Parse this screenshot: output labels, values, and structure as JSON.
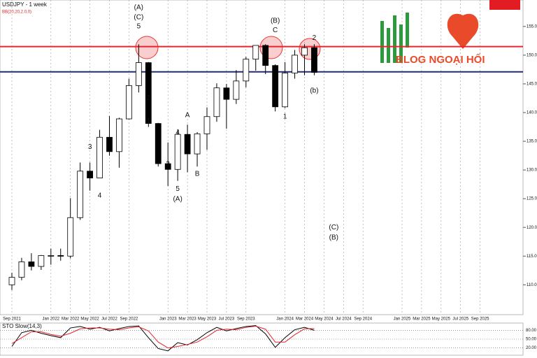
{
  "branding": {
    "logo_text": "BLOG NGOẠI HỐI"
  },
  "chart_data": [
    {
      "type": "candlestick",
      "title": "USDJPY - 1 week",
      "subtitle": "BB(20,20,2.0,0)",
      "categories": [
        "Sep 2021",
        null,
        null,
        null,
        "Jan 2022",
        null,
        "Mar 2022",
        null,
        "May 2022",
        null,
        "Jul 2022",
        null,
        "Sep 2022",
        null,
        null,
        null,
        "Jan 2023",
        null,
        "Mar 2023",
        null,
        "May 2023",
        null,
        "Jul 2023",
        null,
        "Sep 2023",
        null,
        null,
        null,
        "Jan 2024",
        null,
        "Mar 2024",
        null,
        "May 2024",
        null,
        "Jul 2024",
        null,
        "Sep 2024",
        null,
        null,
        null,
        "Jan 2025",
        null,
        "Mar 2025",
        null,
        "May 2025",
        null,
        "Jul 2025",
        null,
        "Sep 2025",
        null
      ],
      "open": [
        110.0,
        111.3,
        114.0,
        113.2,
        115.1,
        115.1,
        115.0,
        121.7,
        129.8,
        128.6,
        135.7,
        133.2,
        138.9,
        144.7,
        148.7,
        138.1,
        131.1,
        130.1,
        136.2,
        132.8,
        136.3,
        139.3,
        144.3,
        142.3,
        145.5,
        149.3,
        151.7,
        148.2,
        141.0,
        146.9,
        150.0,
        151.3,
        null,
        null,
        null,
        null,
        null,
        null,
        null,
        null,
        null,
        null,
        null,
        null,
        null,
        null,
        null,
        null,
        null,
        null
      ],
      "high": [
        112.1,
        114.7,
        115.5,
        115.2,
        116.3,
        116.3,
        125.1,
        131.3,
        131.3,
        137.0,
        139.4,
        139.1,
        145.9,
        151.9,
        148.8,
        138.2,
        134.8,
        137.1,
        137.9,
        136.6,
        140.9,
        145.1,
        145.0,
        147.4,
        149.7,
        151.7,
        151.9,
        148.4,
        148.8,
        150.9,
        151.9,
        151.9,
        null,
        null,
        null,
        null,
        null,
        null,
        null,
        null,
        null,
        null,
        null,
        null,
        null,
        null,
        null,
        null,
        null,
        null
      ],
      "low": [
        109.1,
        110.8,
        112.5,
        112.6,
        113.5,
        114.2,
        114.6,
        121.3,
        126.4,
        128.6,
        132.5,
        130.4,
        138.8,
        143.5,
        137.5,
        130.6,
        127.2,
        128.1,
        129.6,
        130.6,
        133.5,
        138.4,
        137.2,
        141.5,
        144.4,
        147.3,
        146.7,
        140.2,
        140.8,
        145.9,
        146.5,
        146.5,
        null,
        null,
        null,
        null,
        null,
        null,
        null,
        null,
        null,
        null,
        null,
        null,
        null,
        null,
        null,
        null,
        null,
        null
      ],
      "close": [
        111.3,
        114.0,
        113.2,
        115.1,
        115.1,
        115.0,
        121.7,
        129.8,
        128.6,
        135.7,
        133.2,
        138.9,
        144.7,
        148.7,
        138.1,
        131.1,
        130.1,
        136.2,
        132.8,
        136.3,
        139.3,
        144.3,
        142.3,
        145.5,
        149.3,
        151.7,
        148.2,
        141.0,
        146.9,
        150.0,
        151.3,
        147.0,
        null,
        null,
        null,
        null,
        null,
        null,
        null,
        null,
        null,
        null,
        null,
        null,
        null,
        null,
        null,
        null,
        null,
        null
      ],
      "up_color": "#ffffff",
      "down_color": "#000000",
      "grid": "x",
      "ylim": [
        104.8,
        159.0
      ],
      "yticks": [
        {
          "value": 110,
          "label": "110.000"
        },
        {
          "value": 115,
          "label": "115.000"
        },
        {
          "value": 120,
          "label": "120.000"
        },
        {
          "value": 125,
          "label": "125.000"
        },
        {
          "value": 130,
          "label": "130.000"
        },
        {
          "value": 135,
          "label": "135.000"
        },
        {
          "value": 140,
          "label": "140.000"
        },
        {
          "value": 145,
          "label": "145.000"
        },
        {
          "value": 150,
          "label": "150.000"
        },
        {
          "value": 155,
          "label": "155.000"
        }
      ],
      "levels": [
        {
          "value": 151.5,
          "color": "#e6262e"
        },
        {
          "value": 147.1,
          "color": "#1f2d6b"
        }
      ],
      "annotations": [
        {
          "text": "(A)",
          "at": 13,
          "y": 158.3
        },
        {
          "text": "(C)",
          "at": 13,
          "y": 156.6
        },
        {
          "text": "5",
          "at": 13,
          "y": 155.0
        },
        {
          "text": "2",
          "at": 14,
          "y": 142.5
        },
        {
          "text": "1",
          "at": 14,
          "y": 138.5
        },
        {
          "text": "3",
          "at": 8,
          "y": 134.0
        },
        {
          "text": "4",
          "at": 9,
          "y": 125.5
        },
        {
          "text": "3",
          "at": 16,
          "y": 131.0
        },
        {
          "text": "4",
          "at": 17,
          "y": 136.5
        },
        {
          "text": "5",
          "at": 17,
          "y": 126.7
        },
        {
          "text": "(A)",
          "at": 17,
          "y": 124.9
        },
        {
          "text": "A",
          "at": 18,
          "y": 139.5
        },
        {
          "text": "B",
          "at": 19,
          "y": 129.3
        },
        {
          "text": "(B)",
          "at": 27,
          "y": 156.0
        },
        {
          "text": "C",
          "at": 27,
          "y": 154.3
        },
        {
          "text": "1",
          "at": 28,
          "y": 139.3
        },
        {
          "text": "2",
          "at": 31,
          "y": 153.0
        },
        {
          "text": "(b)",
          "at": 31,
          "y": 143.8
        },
        {
          "text": "(C)",
          "at": 33,
          "y": 120.0
        },
        {
          "text": "(B)",
          "at": 33,
          "y": 118.2
        }
      ]
    },
    {
      "type": "line",
      "title": "STO Slow(14,3)",
      "ylim": [
        0,
        100
      ],
      "yticks": [
        {
          "value": 20,
          "label": "20.00"
        },
        {
          "value": 50,
          "label": "50.00"
        },
        {
          "value": 80,
          "label": "80.00"
        }
      ],
      "series": [
        {
          "color": "#000000",
          "values": [
            25,
            72,
            80,
            70,
            62,
            55,
            88,
            93,
            84,
            90,
            78,
            86,
            93,
            95,
            55,
            18,
            10,
            38,
            30,
            48,
            72,
            90,
            78,
            86,
            93,
            96,
            68,
            22,
            55,
            82,
            90,
            80,
            null,
            null,
            null,
            null,
            null,
            null,
            null,
            null,
            null,
            null,
            null,
            null,
            null,
            null,
            null,
            null,
            null,
            null
          ]
        },
        {
          "color": "#e6262e",
          "values": [
            35,
            55,
            75,
            75,
            66,
            60,
            70,
            85,
            88,
            88,
            84,
            82,
            88,
            92,
            78,
            40,
            20,
            25,
            32,
            40,
            58,
            80,
            84,
            82,
            90,
            94,
            84,
            40,
            40,
            65,
            85,
            86,
            null,
            null,
            null,
            null,
            null,
            null,
            null,
            null,
            null,
            null,
            null,
            null,
            null,
            null,
            null,
            null,
            null,
            null
          ]
        }
      ]
    }
  ]
}
